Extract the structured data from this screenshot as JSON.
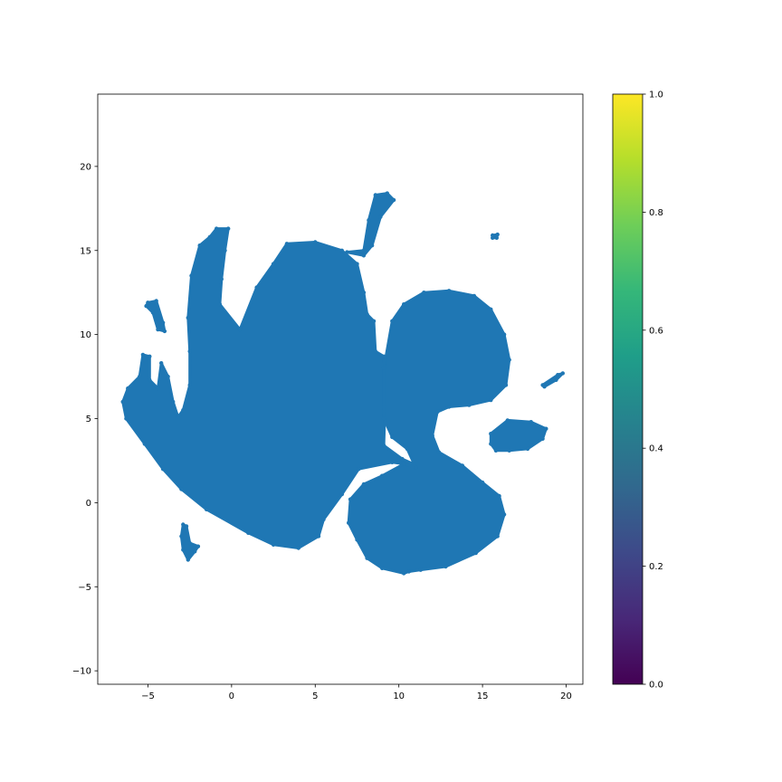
{
  "chart_data": [
    {
      "type": "scatter",
      "title": "",
      "xlabel": "",
      "ylabel": "",
      "xlim": [
        -8,
        21
      ],
      "ylim": [
        -10.8,
        24.3
      ],
      "xticks": [
        -5,
        0,
        5,
        10,
        15,
        20
      ],
      "yticks": [
        -10,
        -5,
        0,
        5,
        10,
        15,
        20
      ],
      "xtick_labels": [
        "−5",
        "0",
        "5",
        "10",
        "15",
        "20"
      ],
      "ytick_labels": [
        "−10",
        "−5",
        "0",
        "5",
        "10",
        "15",
        "20"
      ],
      "grid": false,
      "marker_color": "#1f77b4",
      "point_style": "dense filled markers forming connected regions",
      "regions": [
        {
          "name": "main-cluster",
          "outline": [
            [
              -6.5,
              6.0
            ],
            [
              -6.2,
              6.8
            ],
            [
              -5.5,
              7.5
            ],
            [
              -5.3,
              8.8
            ],
            [
              -4.9,
              8.7
            ],
            [
              -4.9,
              7.3
            ],
            [
              -4.4,
              6.8
            ],
            [
              -4.2,
              8.3
            ],
            [
              -3.8,
              7.5
            ],
            [
              -3.5,
              6.0
            ],
            [
              -3.2,
              5.1
            ],
            [
              -2.9,
              5.5
            ],
            [
              -2.5,
              7.0
            ],
            [
              -2.5,
              9.0
            ],
            [
              -2.6,
              11.0
            ],
            [
              -2.4,
              13.5
            ],
            [
              -1.9,
              15.3
            ],
            [
              -1.3,
              15.8
            ],
            [
              -0.9,
              16.3
            ],
            [
              -0.2,
              16.3
            ],
            [
              -0.4,
              15.0
            ],
            [
              -0.6,
              13.3
            ],
            [
              -0.7,
              11.8
            ],
            [
              0.5,
              10.3
            ],
            [
              1.5,
              12.8
            ],
            [
              2.5,
              14.2
            ],
            [
              3.3,
              15.4
            ],
            [
              5.0,
              15.5
            ],
            [
              6.6,
              15.0
            ],
            [
              7.5,
              14.2
            ],
            [
              7.9,
              12.5
            ],
            [
              8.1,
              11.2
            ],
            [
              8.5,
              10.8
            ],
            [
              8.6,
              9.0
            ],
            [
              9.1,
              8.7
            ],
            [
              9.2,
              6.8
            ],
            [
              9.1,
              3.4
            ],
            [
              10.2,
              2.6
            ],
            [
              11.1,
              2.2
            ],
            [
              9.6,
              2.4
            ],
            [
              7.6,
              2.0
            ],
            [
              6.6,
              0.5
            ],
            [
              5.5,
              -1.0
            ],
            [
              5.2,
              -2.0
            ],
            [
              4.0,
              -2.7
            ],
            [
              2.5,
              -2.5
            ],
            [
              1.0,
              -1.8
            ],
            [
              -1.5,
              -0.4
            ],
            [
              -3.0,
              0.8
            ],
            [
              -4.1,
              2.0
            ],
            [
              -5.2,
              3.5
            ],
            [
              -6.3,
              5.0
            ]
          ]
        },
        {
          "name": "right-upper-lobe",
          "outline": [
            [
              9.1,
              8.0
            ],
            [
              9.6,
              10.8
            ],
            [
              10.3,
              11.8
            ],
            [
              11.5,
              12.5
            ],
            [
              13.0,
              12.6
            ],
            [
              14.5,
              12.3
            ],
            [
              15.5,
              11.5
            ],
            [
              16.3,
              10.0
            ],
            [
              16.6,
              8.5
            ],
            [
              16.4,
              7.0
            ],
            [
              15.5,
              6.1
            ],
            [
              14.2,
              5.8
            ],
            [
              13.0,
              5.7
            ],
            [
              12.3,
              5.4
            ],
            [
              12.0,
              4.0
            ],
            [
              12.4,
              3.0
            ],
            [
              13.8,
              2.2
            ],
            [
              15.0,
              1.2
            ],
            [
              16.0,
              0.4
            ],
            [
              16.3,
              -0.7
            ],
            [
              15.9,
              -2.0
            ],
            [
              14.6,
              -3.0
            ],
            [
              12.8,
              -3.8
            ],
            [
              11.3,
              -4.0
            ],
            [
              10.6,
              -4.1
            ],
            [
              10.3,
              -4.2
            ],
            [
              9.0,
              -3.9
            ],
            [
              8.1,
              -3.3
            ],
            [
              7.5,
              -2.2
            ],
            [
              7.0,
              -1.2
            ],
            [
              7.1,
              0.2
            ],
            [
              7.9,
              1.1
            ],
            [
              9.0,
              1.6
            ],
            [
              10.3,
              2.3
            ],
            [
              11.0,
              2.1
            ],
            [
              10.5,
              3.2
            ],
            [
              9.6,
              3.9
            ],
            [
              9.1,
              5.0
            ]
          ]
        },
        {
          "name": "top-arm",
          "outline": [
            [
              6.9,
              14.9
            ],
            [
              7.9,
              15.0
            ],
            [
              8.2,
              16.8
            ],
            [
              8.6,
              18.3
            ],
            [
              9.3,
              18.4
            ],
            [
              9.7,
              18.0
            ],
            [
              8.9,
              17.0
            ],
            [
              8.4,
              15.3
            ],
            [
              7.9,
              14.7
            ]
          ]
        },
        {
          "name": "left-island",
          "outline": [
            [
              -5.0,
              11.9
            ],
            [
              -4.5,
              12.0
            ],
            [
              -4.1,
              10.7
            ],
            [
              -4.0,
              10.2
            ],
            [
              -4.4,
              10.3
            ],
            [
              -4.7,
              11.3
            ],
            [
              -5.1,
              11.7
            ]
          ]
        },
        {
          "name": "lower-left-strand",
          "outline": [
            [
              -2.9,
              -1.3
            ],
            [
              -2.7,
              -1.4
            ],
            [
              -2.5,
              -2.4
            ],
            [
              -2.0,
              -2.6
            ],
            [
              -2.2,
              -2.9
            ],
            [
              -2.6,
              -3.4
            ],
            [
              -2.9,
              -2.8
            ],
            [
              -3.0,
              -2.0
            ]
          ]
        },
        {
          "name": "right-island",
          "outline": [
            [
              15.5,
              4.1
            ],
            [
              16.5,
              4.9
            ],
            [
              17.9,
              4.8
            ],
            [
              18.8,
              4.4
            ],
            [
              18.6,
              3.8
            ],
            [
              17.7,
              3.2
            ],
            [
              16.6,
              3.1
            ],
            [
              15.8,
              3.1
            ],
            [
              15.5,
              3.5
            ]
          ]
        },
        {
          "name": "far-right-sliver",
          "outline": [
            [
              18.6,
              7.0
            ],
            [
              19.5,
              7.6
            ],
            [
              19.8,
              7.7
            ],
            [
              19.4,
              7.3
            ],
            [
              18.7,
              6.9
            ]
          ]
        },
        {
          "name": "small-dot",
          "outline": [
            [
              15.6,
              15.9
            ],
            [
              15.9,
              15.95
            ],
            [
              15.85,
              15.75
            ],
            [
              15.6,
              15.75
            ]
          ]
        }
      ]
    },
    {
      "type": "heatmap",
      "role": "colorbar",
      "colormap": "viridis",
      "colormap_stops": [
        "#440154",
        "#482878",
        "#3e4989",
        "#31688e",
        "#26828e",
        "#1f9e89",
        "#35b779",
        "#6ece58",
        "#b5de2b",
        "#fde725"
      ],
      "range": [
        0.0,
        1.0
      ],
      "ticks": [
        0.0,
        0.2,
        0.4,
        0.6,
        0.8,
        1.0
      ],
      "tick_labels": [
        "0.0",
        "0.2",
        "0.4",
        "0.6",
        "0.8",
        "1.0"
      ]
    }
  ]
}
